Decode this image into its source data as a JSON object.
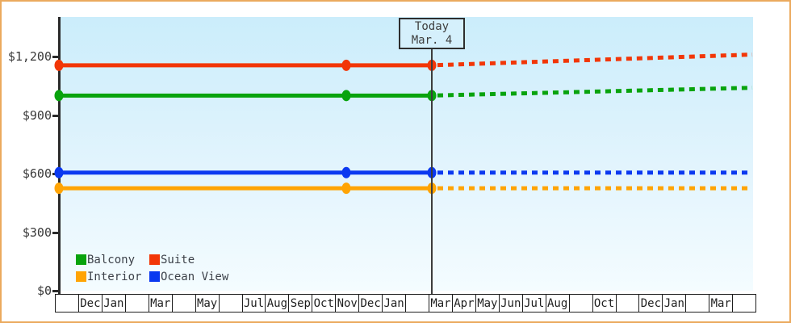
{
  "window": {
    "border_color": "#ebaa5e",
    "plot_background_top": "#cbedfb",
    "plot_background_bottom": "#f4fcff"
  },
  "today_box": {
    "line1": "Today",
    "line2": "Mar. 4"
  },
  "legend": {
    "items": [
      {
        "label": "Balcony",
        "color": "#08a30d"
      },
      {
        "label": "Suite",
        "color": "#f23607"
      },
      {
        "label": "Interior",
        "color": "#ffa404"
      },
      {
        "label": "Ocean View",
        "color": "#0a38f0"
      }
    ]
  },
  "chart_data": {
    "type": "line",
    "title": "",
    "xlabel": "",
    "ylabel": "",
    "ylim": [
      0,
      1425
    ],
    "grid": false,
    "legend_position": "bottom-left",
    "y_ticks": [
      {
        "label": "$1,200",
        "value": 1200
      },
      {
        "label": "$900",
        "value": 900
      },
      {
        "label": "$600",
        "value": 600
      },
      {
        "label": "$300",
        "value": 300
      },
      {
        "label": "$0",
        "value": 0
      }
    ],
    "x_month_cells": [
      "",
      "Dec",
      "Jan",
      "",
      "Mar",
      "",
      "May",
      "",
      "Jul",
      "Aug",
      "Sep",
      "Oct",
      "Nov",
      "Dec",
      "Jan",
      "",
      "Mar",
      "Apr",
      "May",
      "Jun",
      "Jul",
      "Aug",
      "",
      "Oct",
      "",
      "Dec",
      "Jan",
      "",
      "Mar",
      ""
    ],
    "today": {
      "label": "Today",
      "date": "Mar. 4"
    },
    "series": [
      {
        "name": "Suite",
        "color": "#f23607",
        "history_value": 1155,
        "projected_end_value": 1210,
        "history_style": "solid",
        "projection_style": "dashed",
        "markers": 3
      },
      {
        "name": "Balcony",
        "color": "#08a30d",
        "history_value": 1000,
        "projected_end_value": 1040,
        "history_style": "solid",
        "projection_style": "dashed",
        "markers": 3
      },
      {
        "name": "Ocean View",
        "color": "#0a38f0",
        "history_value": 605,
        "projected_end_value": 605,
        "history_style": "solid",
        "projection_style": "dashed",
        "markers": 3
      },
      {
        "name": "Interior",
        "color": "#ffa404",
        "history_value": 525,
        "projected_end_value": 525,
        "history_style": "solid",
        "projection_style": "dashed",
        "markers": 3
      }
    ]
  }
}
